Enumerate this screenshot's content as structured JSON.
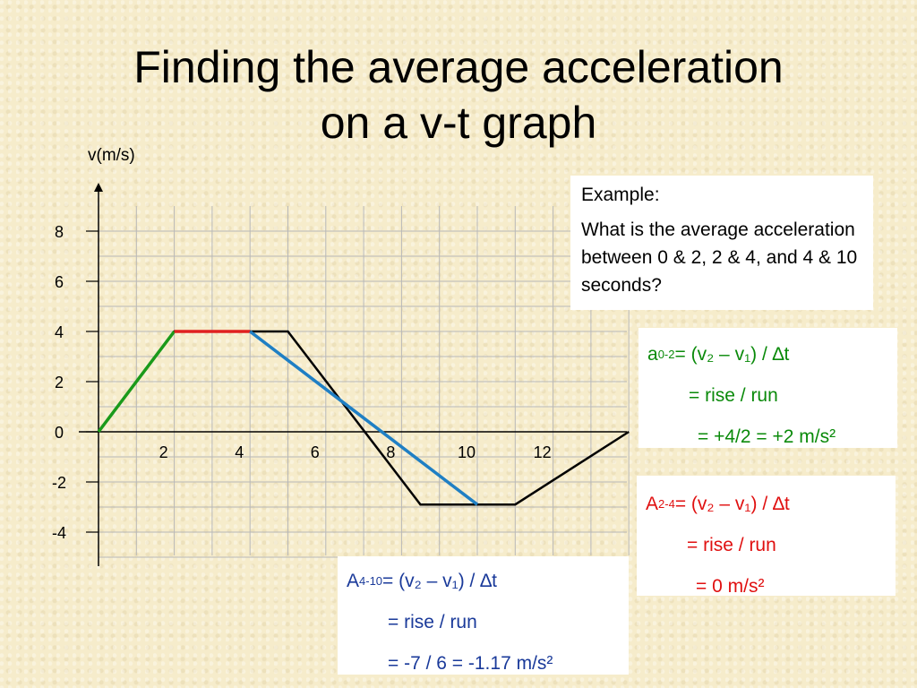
{
  "slide": {
    "title_line1": "Finding the average acceleration",
    "title_line2": "on a v-t graph"
  },
  "colors": {
    "green": "#1a9a1a",
    "red": "#e02020",
    "blue": "#1f7fc4",
    "black": "#000000"
  },
  "chart_data": {
    "type": "line",
    "ylabel": "v(m/s)",
    "xlabel": "",
    "xlim": [
      0,
      14
    ],
    "ylim": [
      -5,
      9
    ],
    "x_ticks": [
      2,
      4,
      6,
      8,
      10,
      12
    ],
    "y_ticks": [
      8,
      6,
      4,
      2,
      0,
      -2,
      -4
    ],
    "grid": true,
    "series": [
      {
        "color": "#000000",
        "x": [
          0,
          2,
          5,
          8.5,
          11,
          14
        ],
        "y": [
          0,
          4,
          4,
          -2.9,
          -2.9,
          0
        ]
      },
      {
        "color": "#1a9a1a",
        "x": [
          0,
          2
        ],
        "y": [
          0,
          4
        ]
      },
      {
        "color": "#e02020",
        "x": [
          2,
          4
        ],
        "y": [
          4,
          4
        ]
      },
      {
        "color": "#1f7fc4",
        "x": [
          4,
          10
        ],
        "y": [
          4,
          -2.9
        ]
      }
    ]
  },
  "example": {
    "heading": "Example:",
    "question": "What is the average acceleration between 0 & 2, 2 & 4, and 4 & 10 seconds?"
  },
  "calc_0_2": {
    "var": "a",
    "sub": "0-2",
    "formula": " = (v₂ – v₁) / ∆t",
    "line2": "= rise / run",
    "line3": "= +4/2 = +2 m/s²"
  },
  "calc_2_4": {
    "var": "A",
    "sub": "2-4",
    "formula": " = (v₂ – v₁) / ∆t",
    "line2": "= rise / run",
    "line3": "= 0 m/s²"
  },
  "calc_4_10": {
    "var": "A",
    "sub": "4-10",
    "formula": " = (v₂ – v₁) / ∆t",
    "line2": "= rise / run",
    "line3": "= -7 / 6 = -1.17 m/s²"
  }
}
